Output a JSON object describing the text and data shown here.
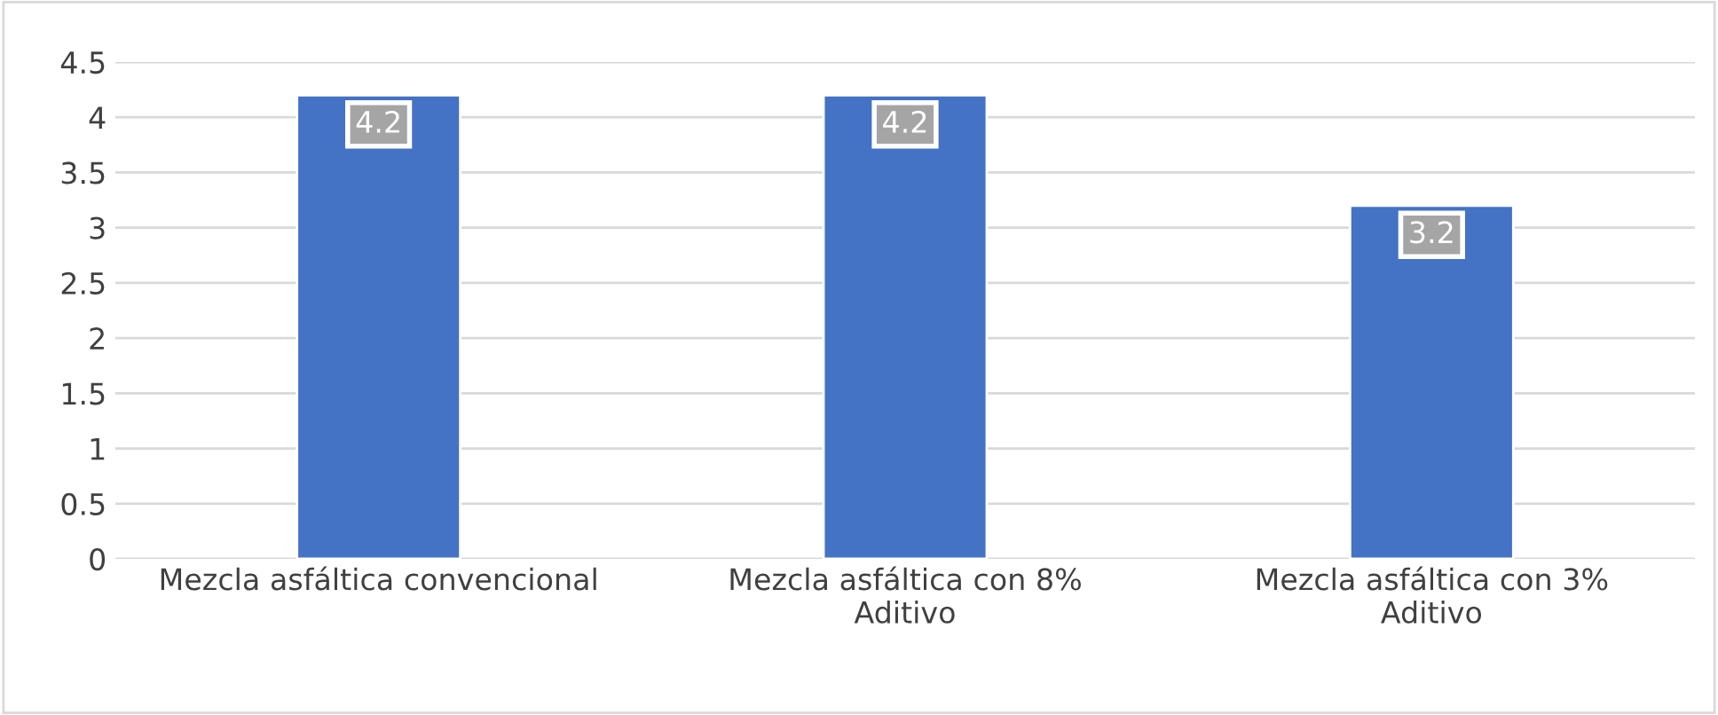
{
  "chart_data": {
    "type": "bar",
    "categories": [
      "Mezcla asfáltica convencional",
      "Mezcla asfáltica con 8%\nAditivo",
      "Mezcla asfáltica con 3%\nAditivo"
    ],
    "values": [
      4.2,
      4.2,
      3.2
    ],
    "color": "#4472c4",
    "ylim": [
      0,
      4.5
    ],
    "yticks": [
      0,
      0.5,
      1,
      1.5,
      2,
      2.5,
      3,
      3.5,
      4,
      4.5
    ],
    "grid": "y",
    "data_labels": true,
    "legend": false
  }
}
